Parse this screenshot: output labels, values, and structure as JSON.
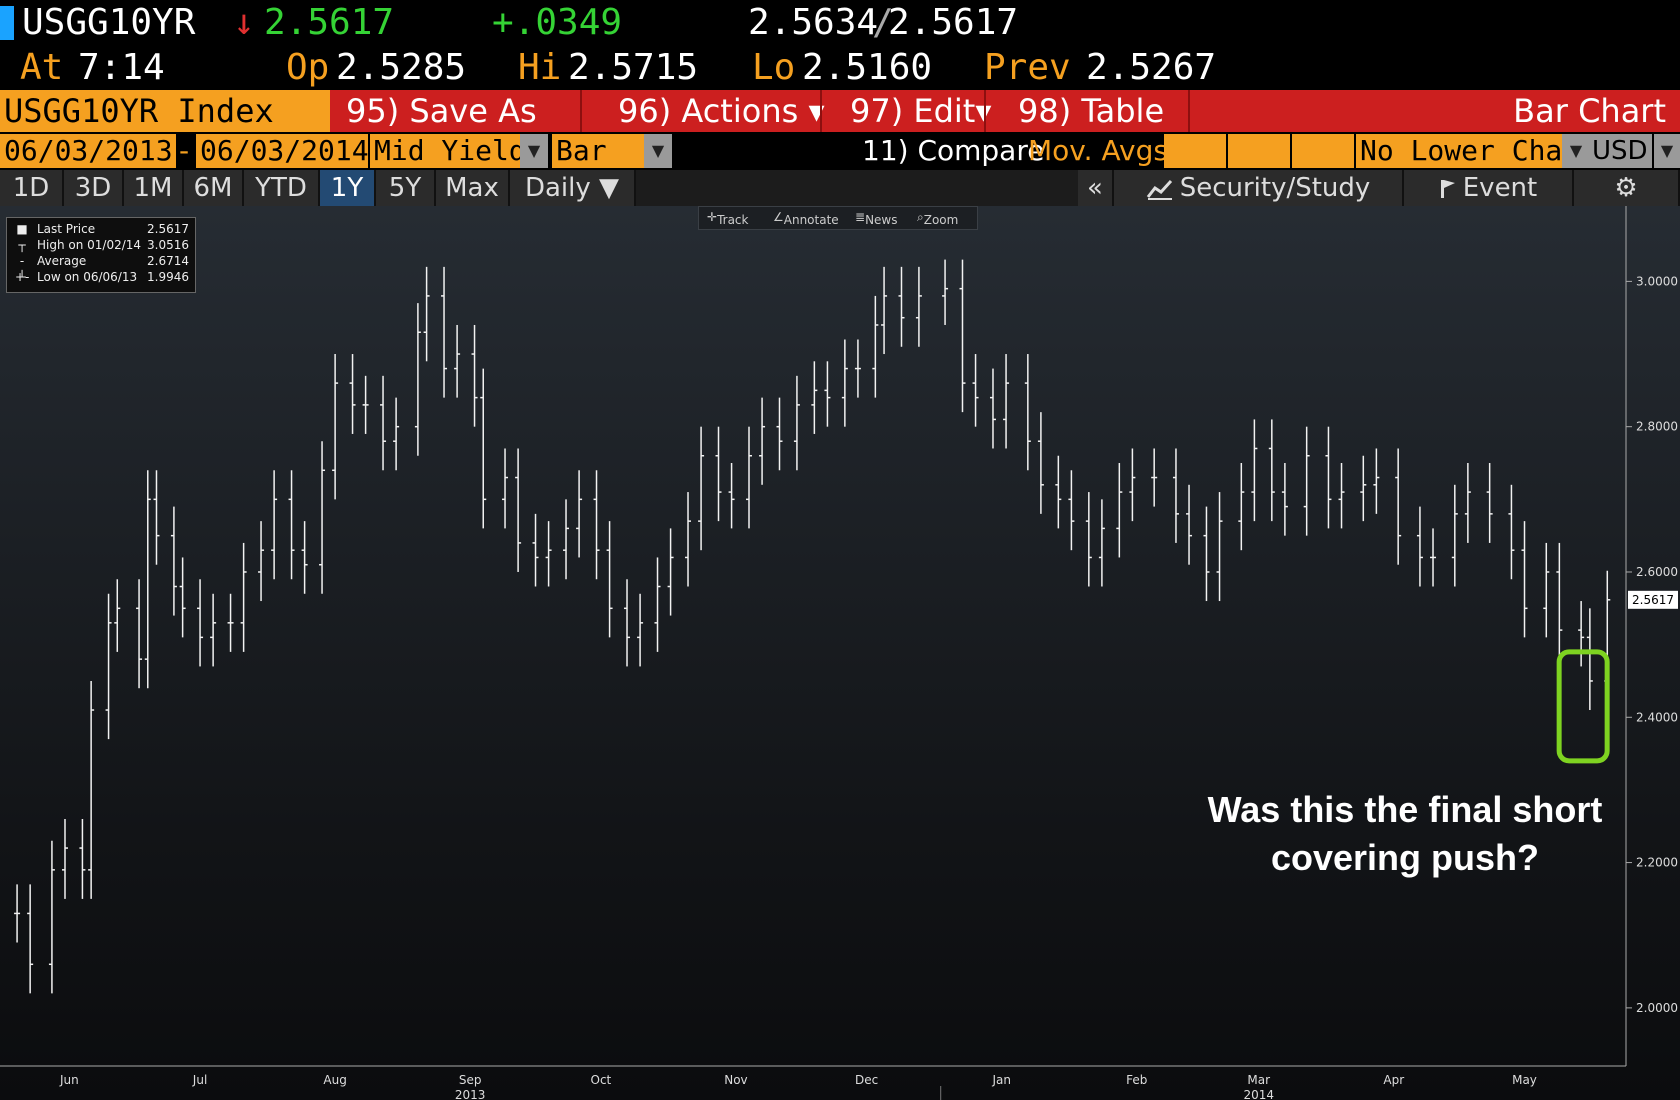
{
  "quote": {
    "ticker": "USGG10YR",
    "arrow": "↓",
    "last": "2.5617",
    "change": "+.0349",
    "bid_ask": "2.5634",
    "bid_ask_sep": "/",
    "bid_ask_2": "2.5617",
    "time_label": "At",
    "time": "7:14",
    "open_label": "Op",
    "open": "2.5285",
    "high_label": "Hi",
    "high": "2.5715",
    "low_label": "Lo",
    "low": "2.5160",
    "prev_label": "Prev",
    "prev": "2.5267"
  },
  "menu": {
    "index": "USGG10YR Index",
    "save_as": "95) Save As",
    "actions": "96) Actions ▾",
    "edit": "97) Edit▾",
    "table": "98) Table",
    "chart_type_title": "Bar Chart"
  },
  "settings": {
    "start_date": "06/03/2013",
    "dash": "-",
    "end_date": "06/03/2014",
    "field": "Mid Yield",
    "style": "Bar",
    "compare": "11) Compare",
    "mov_avgs": "Mov. Avgs",
    "lower_chart": "No Lower Chart",
    "currency": "USD",
    "dropdown_arrow": "▼"
  },
  "toolbar": {
    "periods": [
      "1D",
      "3D",
      "1M",
      "6M",
      "YTD",
      "1Y",
      "5Y",
      "Max"
    ],
    "active_period": "1Y",
    "frequency": "Daily ▼",
    "collapse": "«",
    "security_study": "Security/Study",
    "event": "Event",
    "settings_icon": "⚙"
  },
  "chart_tools": {
    "track": "Track",
    "annotate": "Annotate",
    "news": "News",
    "zoom": "Zoom"
  },
  "legend": {
    "items": [
      {
        "label": "Last Price",
        "value": "2.5617"
      },
      {
        "label": "High on 01/02/14",
        "value": "3.0516"
      },
      {
        "label": "Average",
        "value": "2.6714"
      },
      {
        "label": "Low on 06/06/13",
        "value": "1.9946"
      }
    ]
  },
  "annotation": {
    "line1": "Was this the final short",
    "line2": "covering push?"
  },
  "colors": {
    "accent_orange": "#f5a020",
    "menu_red": "#cc1f1f",
    "up_green": "#35d335",
    "down_red": "#e03030",
    "highlight_green": "#7ed321",
    "active_blue": "#234a73"
  },
  "chart_data": {
    "type": "bar",
    "subtype": "ohlc",
    "title": "",
    "xlabel": "",
    "ylabel": "",
    "ylim": [
      1.92,
      3.09
    ],
    "y_ticks": [
      "3.0000",
      "2.8000",
      "2.6000",
      "2.4000",
      "2.2000",
      "2.0000"
    ],
    "x_ticks": [
      "Jun",
      "Jul",
      "Aug",
      "Sep",
      "Oct",
      "Nov",
      "Dec",
      "Jan",
      "Feb",
      "Mar",
      "Apr",
      "May"
    ],
    "year_labels": [
      "2013",
      "2014"
    ],
    "last_price_label": "2.5617",
    "grid": false,
    "series": [
      {
        "x": [
          "2013-06-03",
          "2013-06-06",
          "2013-06-11",
          "2013-06-14",
          "2013-06-18",
          "2013-06-20",
          "2013-06-24",
          "2013-06-26",
          "2013-07-01",
          "2013-07-03",
          "2013-07-05",
          "2013-07-09",
          "2013-07-11",
          "2013-07-15",
          "2013-07-18",
          "2013-07-22",
          "2013-07-25",
          "2013-07-29",
          "2013-08-01",
          "2013-08-05",
          "2013-08-08",
          "2013-08-12",
          "2013-08-15",
          "2013-08-19",
          "2013-08-22",
          "2013-08-26",
          "2013-08-29",
          "2013-09-03",
          "2013-09-05",
          "2013-09-09",
          "2013-09-12",
          "2013-09-16",
          "2013-09-18",
          "2013-09-23",
          "2013-09-26",
          "2013-09-30",
          "2013-10-03",
          "2013-10-07",
          "2013-10-10",
          "2013-10-14",
          "2013-10-17",
          "2013-10-21",
          "2013-10-24",
          "2013-10-28",
          "2013-10-31",
          "2013-11-04",
          "2013-11-07",
          "2013-11-11",
          "2013-11-14",
          "2013-11-18",
          "2013-11-21",
          "2013-11-25",
          "2013-11-29",
          "2013-12-03",
          "2013-12-06",
          "2013-12-10",
          "2013-12-13",
          "2013-12-17",
          "2013-12-19",
          "2013-12-23",
          "2013-12-27",
          "2014-01-02",
          "2014-01-06",
          "2014-01-09",
          "2014-01-13",
          "2014-01-16",
          "2014-01-21",
          "2014-01-24",
          "2014-01-28",
          "2014-01-31",
          "2014-02-04",
          "2014-02-07",
          "2014-02-11",
          "2014-02-14",
          "2014-02-19",
          "2014-02-24",
          "2014-02-27",
          "2014-03-03",
          "2014-03-06",
          "2014-03-11",
          "2014-03-14",
          "2014-03-18",
          "2014-03-21",
          "2014-03-26",
          "2014-03-31",
          "2014-04-03",
          "2014-04-08",
          "2014-04-11",
          "2014-04-16",
          "2014-04-21",
          "2014-04-24",
          "2014-04-29",
          "2014-05-02",
          "2014-05-07",
          "2014-05-12",
          "2014-05-15",
          "2014-05-20",
          "2014-05-23",
          "2014-05-28",
          "2014-05-30",
          "2014-06-03"
        ],
        "values": [
          2.13,
          2.06,
          2.19,
          2.22,
          2.19,
          2.41,
          2.53,
          2.55,
          2.48,
          2.7,
          2.65,
          2.58,
          2.55,
          2.51,
          2.53,
          2.53,
          2.6,
          2.63,
          2.7,
          2.63,
          2.61,
          2.74,
          2.86,
          2.83,
          2.83,
          2.78,
          2.8,
          2.93,
          2.98,
          2.88,
          2.9,
          2.84,
          2.7,
          2.73,
          2.64,
          2.62,
          2.63,
          2.66,
          2.7,
          2.63,
          2.55,
          2.51,
          2.53,
          2.58,
          2.62,
          2.67,
          2.76,
          2.71,
          2.7,
          2.76,
          2.8,
          2.78,
          2.83,
          2.85,
          2.84,
          2.88,
          2.88,
          2.94,
          2.98,
          2.95,
          2.98,
          2.99,
          2.86,
          2.84,
          2.81,
          2.86,
          2.78,
          2.72,
          2.7,
          2.67,
          2.62,
          2.66,
          2.71,
          2.73,
          2.73,
          2.68,
          2.65,
          2.6,
          2.67,
          2.71,
          2.77,
          2.71,
          2.69,
          2.76,
          2.7,
          2.71,
          2.72,
          2.73,
          2.65,
          2.62,
          2.62,
          2.68,
          2.71,
          2.68,
          2.63,
          2.55,
          2.6,
          2.52,
          2.51,
          2.45,
          2.5617
        ]
      }
    ]
  }
}
